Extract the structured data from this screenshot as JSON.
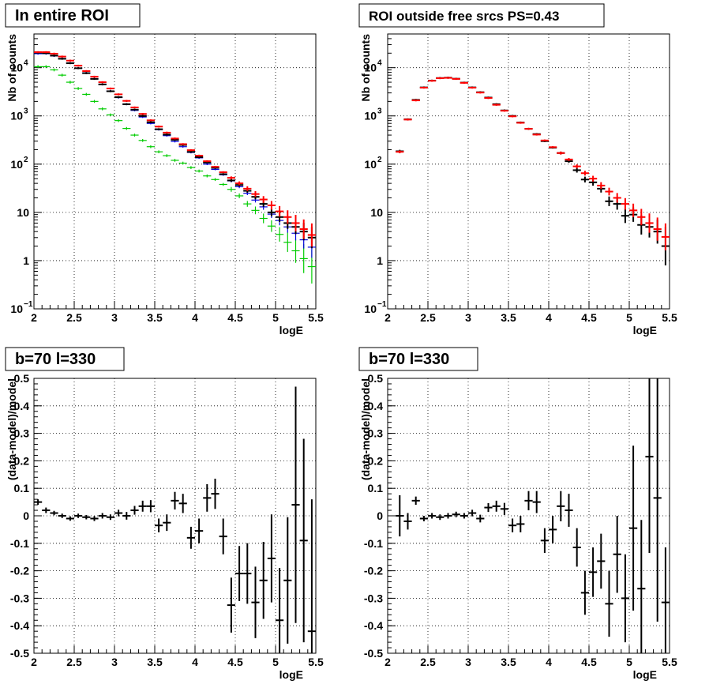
{
  "chart_data": [
    {
      "type": "scatter",
      "title": "In entire ROI",
      "xlabel": "logE",
      "ylabel": "Nb of counts",
      "xlim": [
        2,
        5.5
      ],
      "ylim": [
        0.1,
        50000
      ],
      "yscale": "log",
      "xticks": [
        "2",
        "2.5",
        "3",
        "3.5",
        "4",
        "4.5",
        "5",
        "5.5"
      ],
      "yticks": [
        {
          "value": 0.1,
          "label": "10",
          "exp": "−1"
        },
        {
          "value": 1,
          "label": "1",
          "exp": ""
        },
        {
          "value": 10,
          "label": "10",
          "exp": ""
        },
        {
          "value": 100,
          "label": "10",
          "exp": "2"
        },
        {
          "value": 1000,
          "label": "10",
          "exp": "3"
        },
        {
          "value": 10000,
          "label": "10",
          "exp": "4"
        }
      ],
      "grid": true,
      "series": [
        {
          "color": "#00cc00",
          "x": [
            2.05,
            2.15,
            2.25,
            2.35,
            2.45,
            2.55,
            2.65,
            2.75,
            2.85,
            2.95,
            3.05,
            3.15,
            3.25,
            3.35,
            3.45,
            3.55,
            3.65,
            3.75,
            3.85,
            3.95,
            4.05,
            4.15,
            4.25,
            4.35,
            4.45,
            4.55,
            4.65,
            4.75,
            4.85,
            4.95,
            5.05,
            5.15,
            5.25,
            5.35,
            5.45
          ],
          "y": [
            10500,
            10500,
            9000,
            7000,
            5000,
            3700,
            2800,
            2000,
            1400,
            1050,
            800,
            550,
            400,
            310,
            230,
            180,
            150,
            120,
            105,
            85,
            72,
            57,
            48,
            38,
            30,
            22,
            15,
            11,
            7.5,
            5.2,
            3.5,
            2.4,
            1.6,
            1.1,
            0.75
          ],
          "err": [
            0.03,
            0.03,
            0.03,
            0.03,
            0.03,
            0.03,
            0.03,
            0.03,
            0.03,
            0.03,
            0.03,
            0.03,
            0.03,
            0.03,
            0.03,
            0.03,
            0.03,
            0.03,
            0.03,
            0.03,
            0.03,
            0.03,
            0.03,
            0.03,
            0.05,
            0.05,
            0.06,
            0.08,
            0.1,
            0.12,
            0.15,
            0.2,
            0.25,
            0.3,
            0.35
          ]
        },
        {
          "color": "#0000dd",
          "x": [
            2.05,
            2.15,
            2.25,
            2.35,
            2.45,
            2.55,
            2.65,
            2.75,
            2.85,
            2.95,
            3.05,
            3.15,
            3.25,
            3.35,
            3.45,
            3.55,
            3.65,
            3.75,
            3.85,
            3.95,
            4.05,
            4.15,
            4.25,
            4.35,
            4.45,
            4.55,
            4.65,
            4.75,
            4.85,
            4.95,
            5.05,
            5.15,
            5.25,
            5.35,
            5.45
          ],
          "y": [
            19500,
            19500,
            17500,
            15500,
            12500,
            9800,
            7800,
            5900,
            4500,
            3300,
            2400,
            1750,
            1300,
            950,
            700,
            520,
            390,
            295,
            230,
            175,
            135,
            100,
            78,
            60,
            45,
            34,
            25,
            18,
            13,
            9.2,
            6.8,
            5,
            3.7,
            2.7,
            1.9
          ],
          "err": [
            0.02,
            0.02,
            0.02,
            0.02,
            0.02,
            0.02,
            0.02,
            0.02,
            0.02,
            0.02,
            0.02,
            0.02,
            0.02,
            0.02,
            0.02,
            0.02,
            0.02,
            0.02,
            0.02,
            0.02,
            0.02,
            0.02,
            0.02,
            0.02,
            0.03,
            0.03,
            0.04,
            0.05,
            0.06,
            0.08,
            0.1,
            0.12,
            0.15,
            0.18,
            0.22
          ]
        },
        {
          "color": "#000000",
          "x": [
            2.05,
            2.15,
            2.25,
            2.35,
            2.45,
            2.55,
            2.65,
            2.75,
            2.85,
            2.95,
            3.05,
            3.15,
            3.25,
            3.35,
            3.45,
            3.55,
            3.65,
            3.75,
            3.85,
            3.95,
            4.05,
            4.15,
            4.25,
            4.35,
            4.45,
            4.55,
            4.65,
            4.75,
            4.85,
            4.95,
            5.05,
            5.15,
            5.25,
            5.35,
            5.45
          ],
          "y": [
            20500,
            20000,
            17800,
            15300,
            12400,
            9750,
            7700,
            5850,
            4500,
            3250,
            2450,
            1750,
            1350,
            1000,
            740,
            530,
            410,
            320,
            250,
            180,
            140,
            108,
            84,
            62,
            46,
            37,
            28,
            21,
            15,
            10,
            8,
            6,
            5,
            4,
            3
          ],
          "err": [
            0.02,
            0.02,
            0.02,
            0.02,
            0.02,
            0.02,
            0.02,
            0.02,
            0.02,
            0.02,
            0.02,
            0.02,
            0.02,
            0.02,
            0.02,
            0.02,
            0.02,
            0.02,
            0.02,
            0.02,
            0.02,
            0.02,
            0.02,
            0.02,
            0.03,
            0.03,
            0.04,
            0.05,
            0.06,
            0.08,
            0.1,
            0.12,
            0.15,
            0.18,
            0.22
          ]
        },
        {
          "color": "#ff0000",
          "x": [
            2.05,
            2.15,
            2.25,
            2.35,
            2.45,
            2.55,
            2.65,
            2.75,
            2.85,
            2.95,
            3.05,
            3.15,
            3.25,
            3.35,
            3.45,
            3.55,
            3.65,
            3.75,
            3.85,
            3.95,
            4.05,
            4.15,
            4.25,
            4.35,
            4.45,
            4.55,
            4.65,
            4.75,
            4.85,
            4.95,
            5.05,
            5.15,
            5.25,
            5.35,
            5.45
          ],
          "y": [
            21000,
            21000,
            19500,
            17000,
            14000,
            11000,
            8500,
            6500,
            5000,
            3700,
            2800,
            2050,
            1500,
            1100,
            810,
            600,
            450,
            340,
            260,
            195,
            150,
            115,
            88,
            68,
            52,
            40,
            31,
            24,
            18.5,
            14,
            10.5,
            8,
            6,
            4.5,
            3.4
          ],
          "err": [
            0.02,
            0.02,
            0.02,
            0.02,
            0.02,
            0.02,
            0.02,
            0.02,
            0.02,
            0.02,
            0.02,
            0.02,
            0.02,
            0.02,
            0.02,
            0.02,
            0.02,
            0.02,
            0.02,
            0.02,
            0.02,
            0.02,
            0.02,
            0.02,
            0.03,
            0.04,
            0.05,
            0.06,
            0.07,
            0.09,
            0.11,
            0.14,
            0.17,
            0.2,
            0.24
          ]
        }
      ]
    },
    {
      "type": "scatter",
      "title": "ROI outside free srcs PS=0.43",
      "xlabel": "logE",
      "ylabel": "Nb of counts",
      "xlim": [
        2,
        5.5
      ],
      "ylim": [
        0.1,
        50000
      ],
      "yscale": "log",
      "xticks": [
        "2",
        "2.5",
        "3",
        "3.5",
        "4",
        "4.5",
        "5",
        "5.5"
      ],
      "yticks": [
        {
          "value": 0.1,
          "label": "10",
          "exp": "−1"
        },
        {
          "value": 1,
          "label": "1",
          "exp": ""
        },
        {
          "value": 10,
          "label": "10",
          "exp": ""
        },
        {
          "value": 100,
          "label": "10",
          "exp": "2"
        },
        {
          "value": 1000,
          "label": "10",
          "exp": "3"
        },
        {
          "value": 10000,
          "label": "10",
          "exp": "4"
        }
      ],
      "grid": true,
      "series": [
        {
          "color": "#000000",
          "x": [
            2.15,
            2.25,
            2.35,
            2.45,
            2.55,
            2.65,
            2.75,
            2.85,
            2.95,
            3.05,
            3.15,
            3.25,
            3.35,
            3.45,
            3.55,
            3.65,
            3.75,
            3.85,
            3.95,
            4.05,
            4.15,
            4.25,
            4.35,
            4.45,
            4.55,
            4.65,
            4.75,
            4.85,
            4.95,
            5.05,
            5.15,
            5.25,
            5.35,
            5.45
          ],
          "y": [
            185,
            850,
            2150,
            3900,
            5400,
            6100,
            6200,
            5900,
            4900,
            3900,
            3100,
            2400,
            1750,
            1300,
            1000,
            730,
            540,
            420,
            300,
            220,
            170,
            115,
            75,
            48,
            42,
            31,
            17,
            15,
            8.5,
            9,
            5.5,
            5,
            4,
            2
          ],
          "err": [
            0.03,
            0.02,
            0.02,
            0.02,
            0.02,
            0.02,
            0.02,
            0.02,
            0.02,
            0.02,
            0.02,
            0.02,
            0.02,
            0.02,
            0.02,
            0.02,
            0.02,
            0.02,
            0.02,
            0.02,
            0.03,
            0.03,
            0.05,
            0.06,
            0.07,
            0.08,
            0.1,
            0.12,
            0.15,
            0.15,
            0.2,
            0.22,
            0.25,
            0.4
          ]
        },
        {
          "color": "#ff0000",
          "x": [
            2.15,
            2.25,
            2.35,
            2.45,
            2.55,
            2.65,
            2.75,
            2.85,
            2.95,
            3.05,
            3.15,
            3.25,
            3.35,
            3.45,
            3.55,
            3.65,
            3.75,
            3.85,
            3.95,
            4.05,
            4.15,
            4.25,
            4.35,
            4.45,
            4.55,
            4.65,
            4.75,
            4.85,
            4.95,
            5.05,
            5.15,
            5.25,
            5.35,
            5.45
          ],
          "y": [
            180,
            840,
            2100,
            3850,
            5350,
            6050,
            6150,
            5850,
            4850,
            3850,
            3050,
            2350,
            1700,
            1280,
            980,
            720,
            540,
            410,
            310,
            225,
            170,
            125,
            90,
            65,
            50,
            36,
            27,
            20,
            15,
            11,
            8,
            6,
            4.5,
            3.1
          ],
          "err": [
            0.03,
            0.02,
            0.02,
            0.02,
            0.02,
            0.02,
            0.02,
            0.02,
            0.02,
            0.02,
            0.02,
            0.02,
            0.02,
            0.02,
            0.02,
            0.02,
            0.02,
            0.02,
            0.02,
            0.02,
            0.03,
            0.03,
            0.04,
            0.05,
            0.06,
            0.07,
            0.08,
            0.1,
            0.12,
            0.14,
            0.17,
            0.2,
            0.24,
            0.28
          ]
        }
      ]
    },
    {
      "type": "scatter",
      "title": "b=70 l=330",
      "xlabel": "logE",
      "ylabel": "(data-model)/model",
      "xlim": [
        2,
        5.5
      ],
      "ylim": [
        -0.5,
        0.5
      ],
      "xticks": [
        "2",
        "2.5",
        "3",
        "3.5",
        "4",
        "4.5",
        "5",
        "5.5"
      ],
      "yticks": [
        "-0.5",
        "-0.4",
        "-0.3",
        "-0.2",
        "-0.1",
        "0",
        "0.1",
        "0.2",
        "0.3",
        "0.4",
        "0.5"
      ],
      "grid": true,
      "series": [
        {
          "color": "#000000",
          "x": [
            2.05,
            2.15,
            2.25,
            2.35,
            2.45,
            2.55,
            2.65,
            2.75,
            2.85,
            2.95,
            3.05,
            3.15,
            3.25,
            3.35,
            3.45,
            3.55,
            3.65,
            3.75,
            3.85,
            3.95,
            4.05,
            4.15,
            4.25,
            4.35,
            4.45,
            4.55,
            4.65,
            4.75,
            4.85,
            4.95,
            5.05,
            5.15,
            5.25,
            5.35,
            5.45
          ],
          "y": [
            0.05,
            0.02,
            0.01,
            0.0,
            -0.01,
            0.0,
            -0.005,
            -0.01,
            0.0,
            -0.005,
            0.01,
            0.0,
            0.02,
            0.035,
            0.035,
            -0.035,
            -0.025,
            0.055,
            0.045,
            -0.08,
            -0.055,
            0.065,
            0.08,
            -0.075,
            -0.325,
            -0.21,
            -0.21,
            -0.315,
            -0.235,
            -0.155,
            -0.38,
            -0.235,
            0.04,
            -0.09,
            -0.42
          ],
          "err": [
            0.01,
            0.01,
            0.008,
            0.008,
            0.008,
            0.008,
            0.008,
            0.009,
            0.01,
            0.01,
            0.012,
            0.014,
            0.016,
            0.02,
            0.022,
            0.025,
            0.03,
            0.032,
            0.035,
            0.04,
            0.045,
            0.05,
            0.055,
            0.065,
            0.1,
            0.1,
            0.11,
            0.13,
            0.14,
            0.16,
            0.19,
            0.23,
            0.43,
            0.37,
            0.48
          ]
        }
      ]
    },
    {
      "type": "scatter",
      "title": "b=70 l=330",
      "xlabel": "logE",
      "ylabel": "(data-model)/model",
      "xlim": [
        2,
        5.5
      ],
      "ylim": [
        -0.5,
        0.5
      ],
      "xticks": [
        "2",
        "2.5",
        "3",
        "3.5",
        "4",
        "4.5",
        "5",
        "5.5"
      ],
      "yticks": [
        "-0.5",
        "-0.4",
        "-0.3",
        "-0.2",
        "-0.1",
        "0",
        "0.1",
        "0.2",
        "0.3",
        "0.4",
        "0.5"
      ],
      "grid": true,
      "series": [
        {
          "color": "#000000",
          "x": [
            2.15,
            2.25,
            2.35,
            2.45,
            2.55,
            2.65,
            2.75,
            2.85,
            2.95,
            3.05,
            3.15,
            3.25,
            3.35,
            3.45,
            3.55,
            3.65,
            3.75,
            3.85,
            3.95,
            4.05,
            4.15,
            4.25,
            4.35,
            4.45,
            4.55,
            4.65,
            4.75,
            4.85,
            4.95,
            5.05,
            5.15,
            5.25,
            5.35,
            5.45
          ],
          "y": [
            0.0,
            -0.02,
            0.055,
            -0.01,
            0.0,
            -0.005,
            0.0,
            0.005,
            0.0,
            0.01,
            -0.01,
            0.03,
            0.035,
            0.025,
            -0.035,
            -0.03,
            0.055,
            0.05,
            -0.09,
            -0.05,
            0.035,
            0.02,
            -0.115,
            -0.28,
            -0.205,
            -0.165,
            -0.32,
            -0.14,
            -0.3,
            -0.045,
            -0.265,
            0.215,
            0.065,
            -0.315
          ],
          "err": [
            0.075,
            0.03,
            0.015,
            0.01,
            0.01,
            0.01,
            0.01,
            0.01,
            0.01,
            0.012,
            0.014,
            0.016,
            0.02,
            0.022,
            0.025,
            0.03,
            0.035,
            0.04,
            0.045,
            0.05,
            0.055,
            0.06,
            0.07,
            0.08,
            0.09,
            0.1,
            0.12,
            0.14,
            0.16,
            0.3,
            0.25,
            0.35,
            0.45,
            0.2
          ]
        }
      ]
    }
  ]
}
